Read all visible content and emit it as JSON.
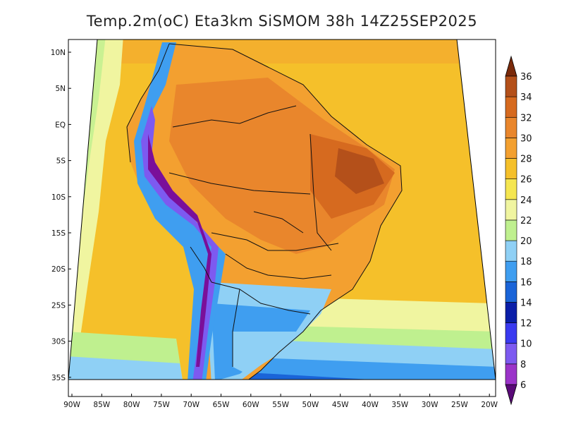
{
  "title": "Temp.2m(oC) Eta3km SiSMOM 38h 14Z25SEP2025",
  "map": {
    "lon_ticks": [
      "90W",
      "85W",
      "80W",
      "75W",
      "70W",
      "65W",
      "60W",
      "55W",
      "50W",
      "45W",
      "40W",
      "35W",
      "30W",
      "25W",
      "20W"
    ],
    "lat_ticks": [
      "10N",
      "5N",
      "EQ",
      "5S",
      "10S",
      "15S",
      "20S",
      "25S",
      "30S",
      "35S"
    ]
  },
  "colorbar": {
    "labels": [
      "6",
      "8",
      "10",
      "12",
      "14",
      "16",
      "18",
      "20",
      "22",
      "24",
      "26",
      "28",
      "30",
      "32",
      "34",
      "36"
    ],
    "colors": [
      "#7a0f9a",
      "#9b34c9",
      "#7d5af0",
      "#3a3af0",
      "#0a1ea8",
      "#1a64d8",
      "#3f9ef0",
      "#8fd0f5",
      "#bff08f",
      "#f0f5a0",
      "#f5e650",
      "#f5c02a",
      "#f3a030",
      "#e9862c",
      "#d66a1f",
      "#b4501a",
      "#8c3010"
    ],
    "low_color": "#5a0a78",
    "high_color": "#7a2a0a"
  }
}
